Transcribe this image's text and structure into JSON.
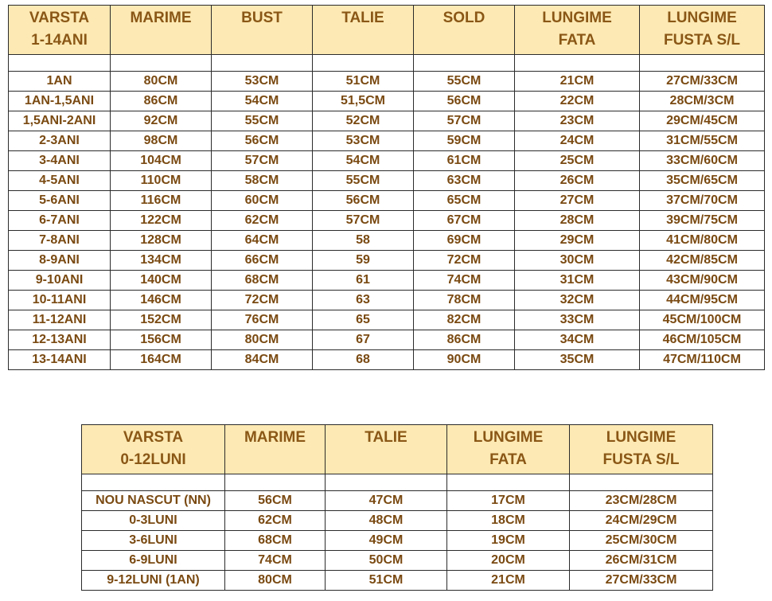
{
  "table1": {
    "headers": [
      [
        "VARSTA",
        "1-14ANI"
      ],
      [
        "MARIME",
        ""
      ],
      [
        "BUST",
        ""
      ],
      [
        "TALIE",
        ""
      ],
      [
        "SOLD",
        ""
      ],
      [
        "LUNGIME",
        "FATA"
      ],
      [
        "LUNGIME",
        "FUSTA S/L"
      ]
    ],
    "rows": [
      [
        "1AN",
        "80CM",
        "53CM",
        "51CM",
        "55CM",
        "21CM",
        "27CM/33CM"
      ],
      [
        "1AN-1,5ANI",
        "86CM",
        "54CM",
        "51,5CM",
        "56CM",
        "22CM",
        "28CM/3CM"
      ],
      [
        "1,5ANI-2ANI",
        "92CM",
        "55CM",
        "52CM",
        "57CM",
        "23CM",
        "29CM/45CM"
      ],
      [
        "2-3ANI",
        "98CM",
        "56CM",
        "53CM",
        "59CM",
        "24CM",
        "31CM/55CM"
      ],
      [
        "3-4ANI",
        "104CM",
        "57CM",
        "54CM",
        "61CM",
        "25CM",
        "33CM/60CM"
      ],
      [
        "4-5ANI",
        "110CM",
        "58CM",
        "55CM",
        "63CM",
        "26CM",
        "35CM/65CM"
      ],
      [
        "5-6ANI",
        "116CM",
        "60CM",
        "56CM",
        "65CM",
        "27CM",
        "37CM/70CM"
      ],
      [
        "6-7ANI",
        "122CM",
        "62CM",
        "57CM",
        "67CM",
        "28CM",
        "39CM/75CM"
      ],
      [
        "7-8ANI",
        "128CM",
        "64CM",
        "58",
        "69CM",
        "29CM",
        "41CM/80CM"
      ],
      [
        "8-9ANI",
        "134CM",
        "66CM",
        "59",
        "72CM",
        "30CM",
        "42CM/85CM"
      ],
      [
        "9-10ANI",
        "140CM",
        "68CM",
        "61",
        "74CM",
        "31CM",
        "43CM/90CM"
      ],
      [
        "10-11ANI",
        "146CM",
        "72CM",
        "63",
        "78CM",
        "32CM",
        "44CM/95CM"
      ],
      [
        "11-12ANI",
        "152CM",
        "76CM",
        "65",
        "82CM",
        "33CM",
        "45CM/100CM"
      ],
      [
        "12-13ANI",
        "156CM",
        "80CM",
        "67",
        "86CM",
        "34CM",
        "46CM/105CM"
      ],
      [
        "13-14ANI",
        "164CM",
        "84CM",
        "68",
        "90CM",
        "35CM",
        "47CM/110CM"
      ]
    ]
  },
  "table2": {
    "headers": [
      [
        "VARSTA",
        "0-12LUNI"
      ],
      [
        "MARIME",
        ""
      ],
      [
        "TALIE",
        ""
      ],
      [
        "LUNGIME",
        "FATA"
      ],
      [
        "LUNGIME",
        "FUSTA S/L"
      ]
    ],
    "rows": [
      [
        "NOU NASCUT (NN)",
        "56CM",
        "47CM",
        "17CM",
        "23CM/28CM"
      ],
      [
        "0-3LUNI",
        "62CM",
        "48CM",
        "18CM",
        "24CM/29CM"
      ],
      [
        "3-6LUNI",
        "68CM",
        "49CM",
        "19CM",
        "25CM/30CM"
      ],
      [
        "6-9LUNI",
        "74CM",
        "50CM",
        "20CM",
        "26CM/31CM"
      ],
      [
        "9-12LUNI (1AN)",
        "80CM",
        "51CM",
        "21CM",
        "27CM/33CM"
      ]
    ]
  },
  "colors": {
    "header_bg": "#fde9b3",
    "text": "#7a4a12",
    "border": "#2b2b2b"
  }
}
